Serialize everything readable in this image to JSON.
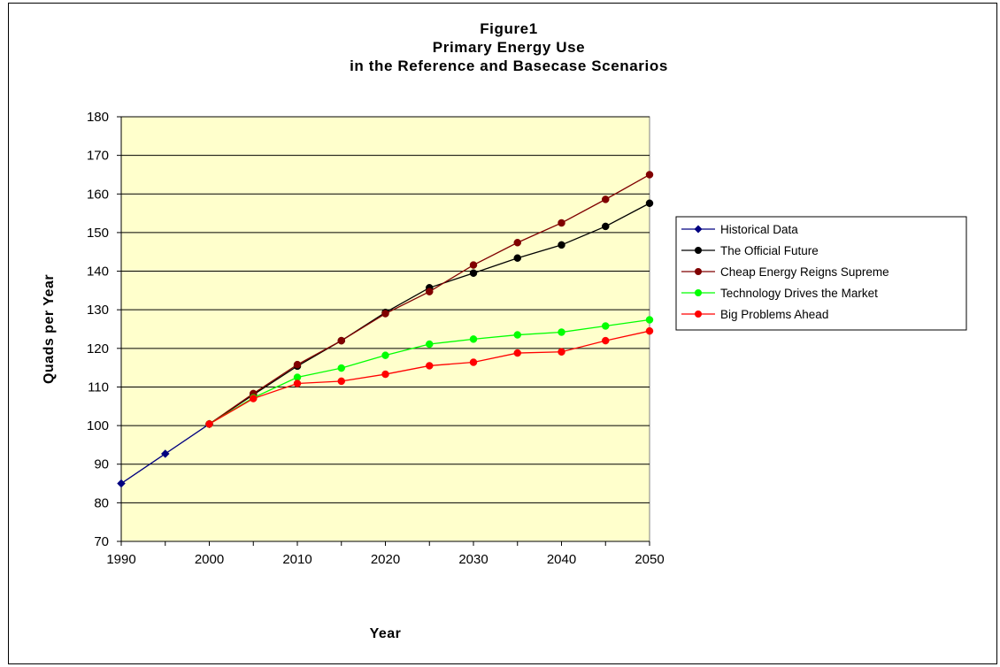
{
  "chart_data": {
    "type": "line",
    "title_lines": [
      "Figure1",
      "Primary Energy Use",
      "in the Reference and Basecase Scenarios"
    ],
    "xlabel": "Year",
    "ylabel": "Quads per Year",
    "ylim": [
      70,
      180
    ],
    "yticks": [
      70,
      80,
      90,
      100,
      110,
      120,
      130,
      140,
      150,
      160,
      170,
      180
    ],
    "xticks": [
      "1990",
      "2000",
      "2010",
      "2020",
      "2030",
      "2040",
      "2050"
    ],
    "plot_background": "#ffffcc",
    "grid": "horizontal",
    "legend_position": "right",
    "series": [
      {
        "name": "Historical Data",
        "color": "#000080",
        "marker": "diamond",
        "points": [
          [
            1990,
            85.0
          ],
          [
            1995,
            92.7
          ],
          [
            2000,
            100.4
          ]
        ]
      },
      {
        "name": "The Official Future",
        "color": "#000000",
        "marker": "circle",
        "points": [
          [
            2000,
            100.4
          ],
          [
            2005,
            108.0
          ],
          [
            2010,
            115.4
          ],
          [
            2015,
            122.0
          ],
          [
            2020,
            129.3
          ],
          [
            2025,
            135.7
          ],
          [
            2030,
            139.5
          ],
          [
            2035,
            143.4
          ],
          [
            2040,
            146.8
          ],
          [
            2045,
            151.6
          ],
          [
            2050,
            157.6
          ]
        ]
      },
      {
        "name": "Cheap Energy Reigns Supreme",
        "color": "#800000",
        "marker": "circle",
        "points": [
          [
            2000,
            100.4
          ],
          [
            2005,
            108.3
          ],
          [
            2010,
            115.8
          ],
          [
            2015,
            122.0
          ],
          [
            2020,
            129.0
          ],
          [
            2025,
            134.7
          ],
          [
            2030,
            141.6
          ],
          [
            2035,
            147.4
          ],
          [
            2040,
            152.5
          ],
          [
            2045,
            158.6
          ],
          [
            2050,
            165.0
          ]
        ]
      },
      {
        "name": "Technology Drives the Market",
        "color": "#00ff00",
        "marker": "circle",
        "points": [
          [
            2000,
            100.4
          ],
          [
            2005,
            107.2
          ],
          [
            2010,
            112.5
          ],
          [
            2015,
            114.9
          ],
          [
            2020,
            118.2
          ],
          [
            2025,
            121.1
          ],
          [
            2030,
            122.4
          ],
          [
            2035,
            123.5
          ],
          [
            2040,
            124.2
          ],
          [
            2045,
            125.8
          ],
          [
            2050,
            127.4
          ]
        ]
      },
      {
        "name": "Big Problems Ahead",
        "color": "#ff0000",
        "marker": "circle",
        "points": [
          [
            2000,
            100.4
          ],
          [
            2005,
            107.0
          ],
          [
            2010,
            110.9
          ],
          [
            2015,
            111.5
          ],
          [
            2020,
            113.3
          ],
          [
            2025,
            115.5
          ],
          [
            2030,
            116.4
          ],
          [
            2035,
            118.8
          ],
          [
            2040,
            119.1
          ],
          [
            2045,
            122.0
          ],
          [
            2050,
            124.5
          ]
        ]
      }
    ]
  }
}
